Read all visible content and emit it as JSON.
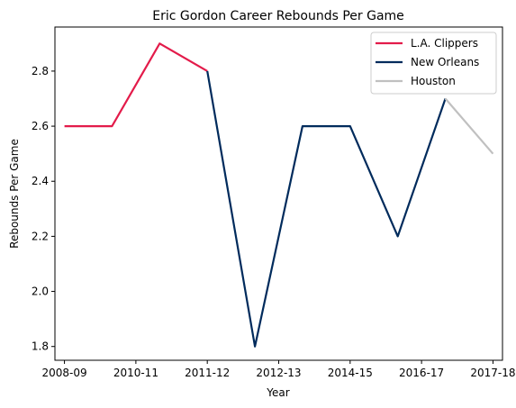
{
  "chart_data": {
    "type": "line",
    "title": "Eric Gordon Career Rebounds Per Game",
    "xlabel": "Year",
    "ylabel": "Rebounds Per Game",
    "x_tick_labels": [
      "2008-09",
      "2010-11",
      "2011-12",
      "2012-13",
      "2014-15",
      "2016-17",
      "2017-18"
    ],
    "x_range": [
      -0.2,
      9.2
    ],
    "ylim": [
      1.75,
      2.96
    ],
    "y_ticks": [
      1.8,
      2.0,
      2.2,
      2.4,
      2.6,
      2.8
    ],
    "grid": false,
    "legend_position": "top-right",
    "series": [
      {
        "name": "L.A. Clippers",
        "color": "#E31B4A",
        "x": [
          0,
          1,
          2,
          3
        ],
        "y": [
          2.6,
          2.6,
          2.9,
          2.8
        ]
      },
      {
        "name": "New Orleans",
        "color": "#002B5C",
        "x": [
          3,
          4,
          5,
          6,
          7,
          8
        ],
        "y": [
          2.8,
          1.8,
          2.6,
          2.6,
          2.2,
          2.7
        ]
      },
      {
        "name": "Houston",
        "color": "#C0C0C0",
        "x": [
          8,
          9
        ],
        "y": [
          2.7,
          2.5
        ]
      }
    ]
  }
}
